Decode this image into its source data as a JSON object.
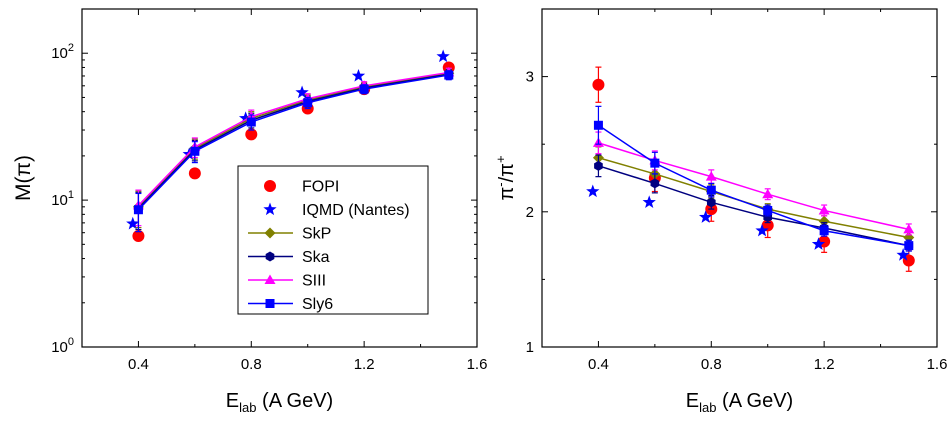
{
  "chart_data": [
    {
      "type": "scatter",
      "xlabel": {
        "main": "E",
        "sub": "lab",
        "rest": " (A GeV)"
      },
      "ylabel": "M(π)",
      "xlim": [
        0.2,
        1.6
      ],
      "ylim": [
        1,
        200
      ],
      "yscale": "log",
      "xticks": [
        0.4,
        0.8,
        1.2,
        1.6
      ],
      "xtick_labels": [
        "0.4",
        "0.8",
        "1.2",
        "1.6"
      ],
      "yticks": [
        1,
        10,
        100
      ],
      "ytick_labels": [
        {
          "base": "10",
          "exp": "0"
        },
        {
          "base": "10",
          "exp": "1"
        },
        {
          "base": "10",
          "exp": "2"
        }
      ],
      "legend": {
        "position": "lower-right"
      },
      "series": [
        {
          "name": "FOPI",
          "color": "#ff0000",
          "marker": "circle",
          "line": false,
          "x": [
            0.4,
            0.6,
            0.8,
            1.0,
            1.2,
            1.5
          ],
          "y": [
            5.7,
            15.2,
            28,
            42,
            57,
            80
          ],
          "err": [
            0,
            0,
            0,
            0,
            0,
            0
          ]
        },
        {
          "name": "IQMD (Nantes)",
          "color": "#0000ff",
          "marker": "star",
          "line": false,
          "x": [
            0.38,
            0.58,
            0.78,
            0.98,
            1.18,
            1.48
          ],
          "y": [
            6.9,
            20.5,
            36,
            54,
            70,
            95
          ],
          "err": [
            0,
            0,
            0,
            0,
            0,
            0
          ]
        },
        {
          "name": "SkP",
          "color": "#808000",
          "marker": "diamond",
          "line": true,
          "x": [
            0.4,
            0.6,
            0.8,
            1.0,
            1.2,
            1.5
          ],
          "y": [
            9.0,
            22.5,
            36,
            48,
            59,
            73
          ],
          "err": [
            2.5,
            3.5,
            4,
            4,
            4,
            5
          ]
        },
        {
          "name": "Ska",
          "color": "#000080",
          "marker": "hexagon",
          "line": true,
          "x": [
            0.4,
            0.6,
            0.8,
            1.0,
            1.2,
            1.5
          ],
          "y": [
            8.8,
            22.0,
            35,
            47,
            58,
            72
          ],
          "err": [
            2.5,
            3.5,
            4,
            4,
            4,
            5
          ]
        },
        {
          "name": "SIII",
          "color": "#ff00ff",
          "marker": "triangle",
          "line": true,
          "x": [
            0.4,
            0.6,
            0.8,
            1.0,
            1.2,
            1.5
          ],
          "y": [
            9.2,
            23.0,
            37,
            49,
            60,
            74
          ],
          "err": [
            2.5,
            3.5,
            4,
            4,
            4,
            5
          ]
        },
        {
          "name": "Sly6",
          "color": "#0000ff",
          "marker": "square",
          "line": true,
          "x": [
            0.4,
            0.6,
            0.8,
            1.0,
            1.2,
            1.5
          ],
          "y": [
            8.6,
            21.5,
            34,
            46,
            57,
            71
          ],
          "err": [
            2.5,
            3.5,
            4,
            4,
            4,
            5
          ]
        }
      ]
    },
    {
      "type": "scatter",
      "xlabel": {
        "main": "E",
        "sub": "lab",
        "rest": " (A GeV)"
      },
      "ylabel": {
        "a": "π",
        "asup": "-",
        "slash": "/π",
        "bsup": "+"
      },
      "xlim": [
        0.2,
        1.6
      ],
      "ylim": [
        1,
        3.5
      ],
      "yscale": "linear",
      "xticks": [
        0.4,
        0.8,
        1.2,
        1.6
      ],
      "xtick_labels": [
        "0.4",
        "0.8",
        "1.2",
        "1.6"
      ],
      "yticks": [
        1,
        2,
        3
      ],
      "ytick_labels": [
        "1",
        "2",
        "3"
      ],
      "series": [
        {
          "name": "FOPI",
          "color": "#ff0000",
          "marker": "circle",
          "line": false,
          "x": [
            0.4,
            0.6,
            0.8,
            1.0,
            1.2,
            1.5
          ],
          "y": [
            2.94,
            2.25,
            2.02,
            1.9,
            1.78,
            1.64
          ],
          "err": [
            0.13,
            0.1,
            0.09,
            0.09,
            0.08,
            0.08
          ]
        },
        {
          "name": "IQMD (Nantes)",
          "color": "#0000ff",
          "marker": "star",
          "line": false,
          "x": [
            0.38,
            0.58,
            0.78,
            0.98,
            1.18,
            1.48
          ],
          "y": [
            2.15,
            2.07,
            1.96,
            1.86,
            1.76,
            1.68
          ],
          "err": [
            0,
            0,
            0,
            0,
            0,
            0
          ]
        },
        {
          "name": "SkP",
          "color": "#808000",
          "marker": "diamond",
          "line": true,
          "x": [
            0.4,
            0.6,
            0.8,
            1.0,
            1.2,
            1.5
          ],
          "y": [
            2.4,
            2.28,
            2.15,
            2.02,
            1.93,
            1.81
          ],
          "err": [
            0.08,
            0.07,
            0.05,
            0.04,
            0.04,
            0.04
          ]
        },
        {
          "name": "Ska",
          "color": "#000080",
          "marker": "hexagon",
          "line": true,
          "x": [
            0.4,
            0.6,
            0.8,
            1.0,
            1.2,
            1.5
          ],
          "y": [
            2.34,
            2.21,
            2.07,
            1.96,
            1.88,
            1.75
          ],
          "err": [
            0.08,
            0.07,
            0.05,
            0.04,
            0.04,
            0.04
          ]
        },
        {
          "name": "SIII",
          "color": "#ff00ff",
          "marker": "triangle",
          "line": true,
          "x": [
            0.4,
            0.6,
            0.8,
            1.0,
            1.2,
            1.5
          ],
          "y": [
            2.51,
            2.38,
            2.26,
            2.13,
            2.01,
            1.87
          ],
          "err": [
            0.08,
            0.07,
            0.05,
            0.04,
            0.04,
            0.04
          ]
        },
        {
          "name": "Sly6",
          "color": "#0000ff",
          "marker": "square",
          "line": true,
          "x": [
            0.4,
            0.6,
            0.8,
            1.0,
            1.2,
            1.5
          ],
          "y": [
            2.64,
            2.36,
            2.16,
            2.01,
            1.86,
            1.75
          ],
          "err": [
            0.14,
            0.08,
            0.05,
            0.04,
            0.04,
            0.04
          ]
        }
      ]
    }
  ]
}
